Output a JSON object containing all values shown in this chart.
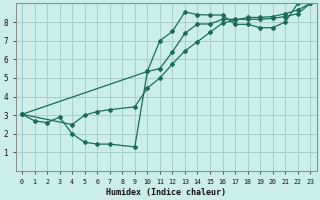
{
  "bg_color": "#cceee8",
  "grid_color": "#aacccc",
  "line_color": "#1a6b5a",
  "xlabel": "Humidex (Indice chaleur)",
  "xlim": [
    -0.5,
    23.5
  ],
  "ylim": [
    0,
    9
  ],
  "xticks": [
    0,
    1,
    2,
    3,
    4,
    5,
    6,
    7,
    8,
    9,
    10,
    11,
    12,
    13,
    14,
    15,
    16,
    17,
    18,
    19,
    20,
    21,
    22,
    23
  ],
  "yticks": [
    1,
    2,
    3,
    4,
    5,
    6,
    7,
    8
  ],
  "line1_x": [
    0,
    1,
    2,
    3,
    4,
    5,
    6,
    7,
    9,
    10,
    11,
    12,
    13,
    14,
    15,
    16,
    17,
    18,
    19,
    20,
    21,
    22,
    23
  ],
  "line1_y": [
    3.05,
    2.7,
    2.6,
    2.9,
    2.0,
    1.55,
    1.45,
    1.45,
    1.3,
    5.35,
    7.0,
    7.5,
    8.55,
    8.4,
    8.38,
    8.38,
    7.88,
    7.88,
    7.7,
    7.7,
    8.0,
    9.0,
    9.0
  ],
  "line2_x": [
    0,
    10,
    11,
    12,
    13,
    14,
    15,
    16,
    17,
    18,
    19,
    20,
    21,
    22,
    23
  ],
  "line2_y": [
    3.05,
    5.35,
    5.5,
    6.4,
    7.4,
    7.9,
    7.9,
    8.15,
    8.15,
    8.15,
    8.15,
    8.2,
    8.3,
    8.45,
    9.0
  ],
  "line3_x": [
    0,
    4,
    5,
    6,
    7,
    9,
    10,
    11,
    12,
    13,
    14,
    15,
    16,
    17,
    18,
    19,
    20,
    21,
    22,
    23
  ],
  "line3_y": [
    3.05,
    2.5,
    3.0,
    3.2,
    3.3,
    3.45,
    4.45,
    5.0,
    5.75,
    6.45,
    6.95,
    7.45,
    7.95,
    8.1,
    8.25,
    8.25,
    8.3,
    8.45,
    8.65,
    9.0
  ]
}
